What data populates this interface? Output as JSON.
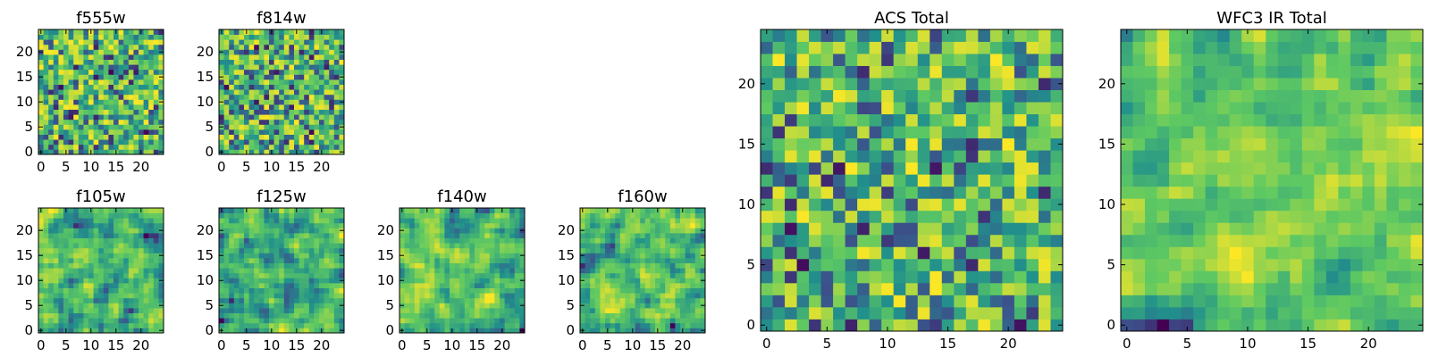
{
  "colormap": [
    "#440154",
    "#3b528b",
    "#21918c",
    "#5ec962",
    "#fde725"
  ],
  "chart_data": [
    {
      "type": "heatmap",
      "title": "f555w",
      "nx": 25,
      "ny": 25,
      "xlim": [
        -0.5,
        24.5
      ],
      "ylim": [
        -0.5,
        24.5
      ],
      "xticks": [
        0,
        5,
        10,
        15,
        20
      ],
      "yticks": [
        0,
        5,
        10,
        15,
        20
      ],
      "texture": "noise",
      "seed": 11
    },
    {
      "type": "heatmap",
      "title": "f814w",
      "nx": 25,
      "ny": 25,
      "xlim": [
        -0.5,
        24.5
      ],
      "ylim": [
        -0.5,
        24.5
      ],
      "xticks": [
        0,
        5,
        10,
        15,
        20
      ],
      "yticks": [
        0,
        5,
        10,
        15,
        20
      ],
      "texture": "noise",
      "seed": 23
    },
    {
      "type": "heatmap",
      "title": "f105w",
      "nx": 25,
      "ny": 25,
      "xlim": [
        -0.5,
        24.5
      ],
      "ylim": [
        -0.5,
        24.5
      ],
      "xticks": [
        0,
        5,
        10,
        15,
        20
      ],
      "yticks": [
        0,
        5,
        10,
        15,
        20
      ],
      "texture": "smooth",
      "seed": 37
    },
    {
      "type": "heatmap",
      "title": "f125w",
      "nx": 25,
      "ny": 25,
      "xlim": [
        -0.5,
        24.5
      ],
      "ylim": [
        -0.5,
        24.5
      ],
      "xticks": [
        0,
        5,
        10,
        15,
        20
      ],
      "yticks": [
        0,
        5,
        10,
        15,
        20
      ],
      "texture": "smooth",
      "seed": 41
    },
    {
      "type": "heatmap",
      "title": "f140w",
      "nx": 25,
      "ny": 25,
      "xlim": [
        -0.5,
        24.5
      ],
      "ylim": [
        -0.5,
        24.5
      ],
      "xticks": [
        0,
        5,
        10,
        15,
        20
      ],
      "yticks": [
        0,
        5,
        10,
        15,
        20
      ],
      "texture": "smooth",
      "seed": 53
    },
    {
      "type": "heatmap",
      "title": "f160w",
      "nx": 25,
      "ny": 25,
      "xlim": [
        -0.5,
        24.5
      ],
      "ylim": [
        -0.5,
        24.5
      ],
      "xticks": [
        0,
        5,
        10,
        15,
        20
      ],
      "yticks": [
        0,
        5,
        10,
        15,
        20
      ],
      "texture": "smooth",
      "seed": 67
    },
    {
      "type": "heatmap",
      "title": "ACS Total",
      "nx": 25,
      "ny": 25,
      "xlim": [
        -0.5,
        24.5
      ],
      "ylim": [
        -0.5,
        24.5
      ],
      "xticks": [
        0,
        5,
        10,
        15,
        20
      ],
      "yticks": [
        0,
        5,
        10,
        15,
        20
      ],
      "texture": "noise",
      "seed": 79
    },
    {
      "type": "heatmap",
      "title": "WFC3 IR Total",
      "nx": 25,
      "ny": 25,
      "xlim": [
        -0.5,
        24.5
      ],
      "ylim": [
        -0.5,
        24.5
      ],
      "xticks": [
        0,
        5,
        10,
        15,
        20
      ],
      "yticks": [
        0,
        5,
        10,
        15,
        20
      ],
      "texture": "smooth",
      "seed": 97
    }
  ]
}
